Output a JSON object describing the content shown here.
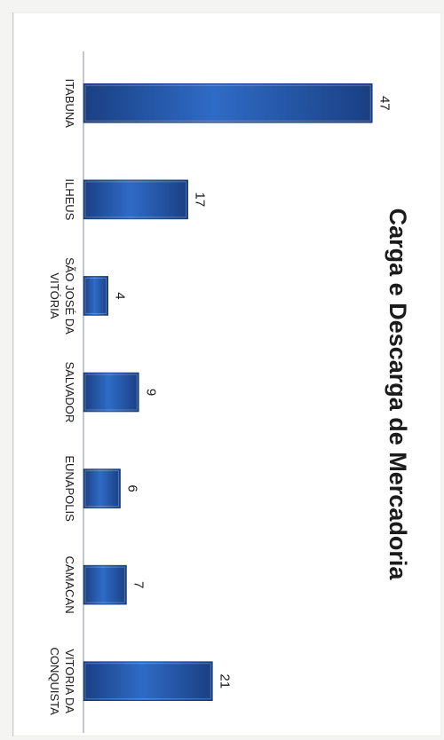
{
  "chart_data": {
    "type": "bar",
    "orientation": "horizontal",
    "rotated": "page rotated 90 degrees clockwise",
    "title": "Carga e Descarga de Mercadoria",
    "xlabel": "",
    "ylabel": "",
    "categories": [
      "ITABUNA",
      "ILHEUS",
      "SÃO JOSÉ DA VITÓRIA",
      "SALVADOR",
      "EUNAPOLIS",
      "CAMACAN",
      "VITORIA DA CONQUISTA"
    ],
    "category_lines": [
      [
        "ITABUNA"
      ],
      [
        "ILHEUS"
      ],
      [
        "SÃO JOSÉ DA",
        "VITÓRIA"
      ],
      [
        "SALVADOR"
      ],
      [
        "EUNAPOLIS"
      ],
      [
        "CAMACAN"
      ],
      [
        "VITORIA DA",
        "CONQUISTA"
      ]
    ],
    "values": [
      47,
      17,
      4,
      9,
      6,
      7,
      21
    ],
    "data_labels": [
      "47",
      "17",
      "4",
      "9",
      "6",
      "7",
      "21"
    ],
    "xlim": [
      0,
      50
    ],
    "grid": false,
    "legend": "none",
    "colors": {
      "bar_dark": "#1a3f82",
      "bar_light": "#2f6bc6",
      "axis": "#8a8f96",
      "text": "#1b1b1b"
    }
  }
}
